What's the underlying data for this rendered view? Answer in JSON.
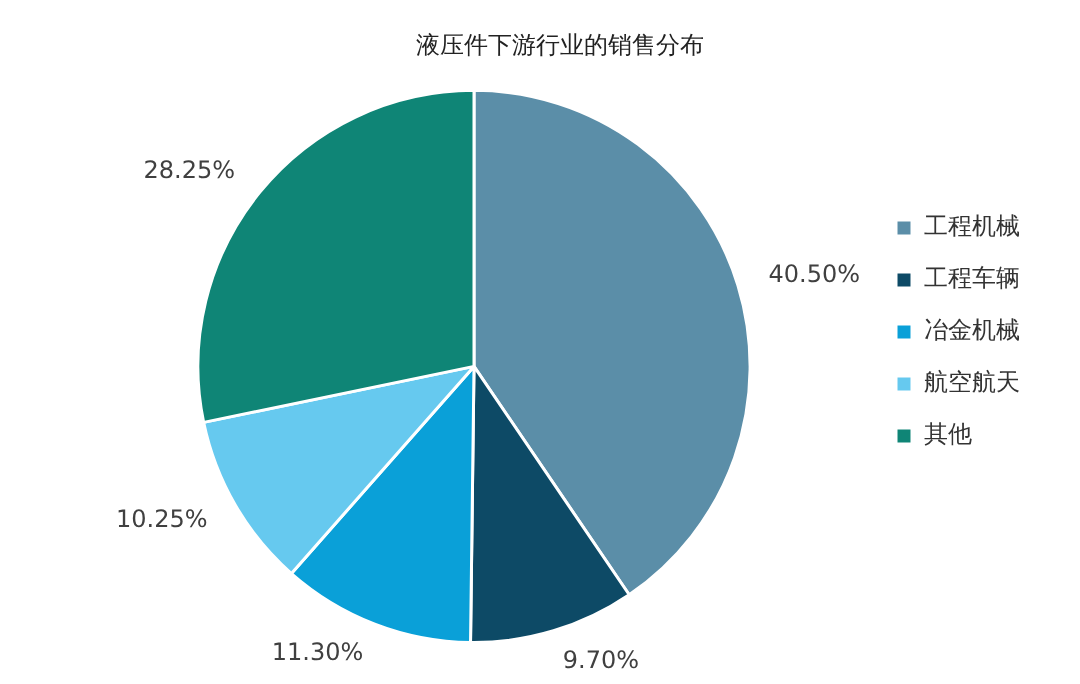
{
  "chart_data": {
    "type": "pie",
    "title": "液压件下游行业的销售分布",
    "categories": [
      "工程机械",
      "工程车辆",
      "冶金机械",
      "航空航天",
      "其他"
    ],
    "values": [
      40.5,
      9.7,
      11.3,
      10.25,
      28.25
    ],
    "value_labels": [
      "40.50%",
      "9.70%",
      "11.30%",
      "10.25%",
      "28.25%"
    ],
    "colors": [
      "#5b8ea8",
      "#0d4a66",
      "#0aa0d8",
      "#66c9ef",
      "#0f8576"
    ],
    "legend": "right"
  }
}
